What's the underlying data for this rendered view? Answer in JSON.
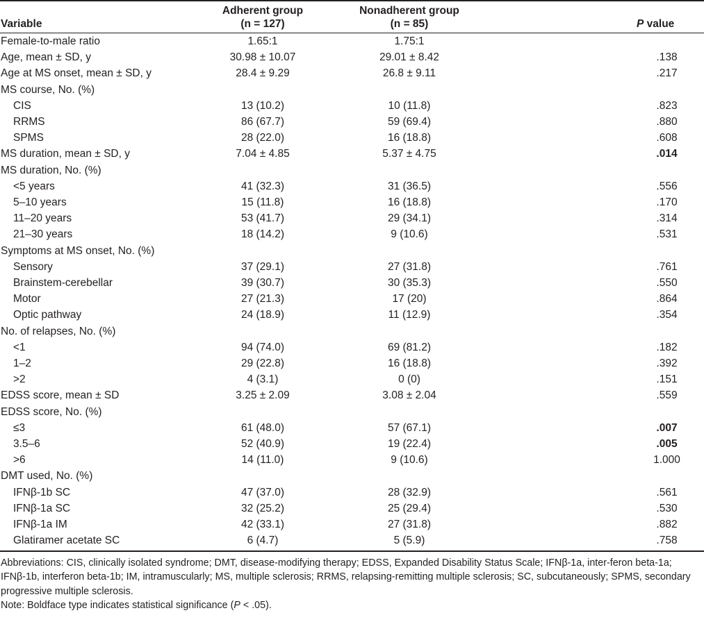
{
  "header": {
    "variable": "Variable",
    "adherent_line1": "Adherent group",
    "adherent_line2": "(n = 127)",
    "nonadherent_line1": "Nonadherent group",
    "nonadherent_line2": "(n = 85)",
    "p_italic": "P",
    "p_rest": " value"
  },
  "rows": [
    {
      "label": "Female-to-male ratio",
      "adherent": "1.65:1",
      "nonadherent": "1.75:1",
      "p": "",
      "sub": false,
      "sig": false
    },
    {
      "label": "Age, mean ± SD, y",
      "adherent": "30.98 ± 10.07",
      "nonadherent": "29.01 ± 8.42",
      "p": ".138",
      "sub": false,
      "sig": false
    },
    {
      "label": "Age at MS onset, mean ± SD, y",
      "adherent": "28.4 ± 9.29",
      "nonadherent": "26.8 ± 9.11",
      "p": ".217",
      "sub": false,
      "sig": false
    },
    {
      "label": "MS course, No. (%)",
      "adherent": "",
      "nonadherent": "",
      "p": "",
      "sub": false,
      "sig": false
    },
    {
      "label": "CIS",
      "adherent": "13 (10.2)",
      "nonadherent": "10 (11.8)",
      "p": ".823",
      "sub": true,
      "sig": false
    },
    {
      "label": "RRMS",
      "adherent": "86 (67.7)",
      "nonadherent": "59 (69.4)",
      "p": ".880",
      "sub": true,
      "sig": false
    },
    {
      "label": "SPMS",
      "adherent": "28 (22.0)",
      "nonadherent": "16 (18.8)",
      "p": ".608",
      "sub": true,
      "sig": false
    },
    {
      "label": "MS duration, mean ± SD, y",
      "adherent": "7.04 ± 4.85",
      "nonadherent": "5.37 ± 4.75",
      "p": ".014",
      "sub": false,
      "sig": true
    },
    {
      "label": "MS duration, No. (%)",
      "adherent": "",
      "nonadherent": "",
      "p": "",
      "sub": false,
      "sig": false
    },
    {
      "label": "<5 years",
      "adherent": "41 (32.3)",
      "nonadherent": "31 (36.5)",
      "p": ".556",
      "sub": true,
      "sig": false
    },
    {
      "label": "5–10 years",
      "adherent": "15 (11.8)",
      "nonadherent": "16 (18.8)",
      "p": ".170",
      "sub": true,
      "sig": false
    },
    {
      "label": "11–20 years",
      "adherent": "53 (41.7)",
      "nonadherent": "29 (34.1)",
      "p": ".314",
      "sub": true,
      "sig": false
    },
    {
      "label": "21–30 years",
      "adherent": "18 (14.2)",
      "nonadherent": "9 (10.6)",
      "p": ".531",
      "sub": true,
      "sig": false
    },
    {
      "label": "Symptoms at MS onset, No. (%)",
      "adherent": "",
      "nonadherent": "",
      "p": "",
      "sub": false,
      "sig": false
    },
    {
      "label": "Sensory",
      "adherent": "37 (29.1)",
      "nonadherent": "27 (31.8)",
      "p": ".761",
      "sub": true,
      "sig": false
    },
    {
      "label": "Brainstem-cerebellar",
      "adherent": "39 (30.7)",
      "nonadherent": "30 (35.3)",
      "p": ".550",
      "sub": true,
      "sig": false
    },
    {
      "label": "Motor",
      "adherent": "27 (21.3)",
      "nonadherent": "17 (20)",
      "p": ".864",
      "sub": true,
      "sig": false
    },
    {
      "label": "Optic pathway",
      "adherent": "24 (18.9)",
      "nonadherent": "11 (12.9)",
      "p": ".354",
      "sub": true,
      "sig": false
    },
    {
      "label": "No. of relapses, No. (%)",
      "adherent": "",
      "nonadherent": "",
      "p": "",
      "sub": false,
      "sig": false
    },
    {
      "label": "<1",
      "adherent": "94 (74.0)",
      "nonadherent": "69 (81.2)",
      "p": ".182",
      "sub": true,
      "sig": false
    },
    {
      "label": "1–2",
      "adherent": "29 (22.8)",
      "nonadherent": "16 (18.8)",
      "p": ".392",
      "sub": true,
      "sig": false
    },
    {
      "label": ">2",
      "adherent": "4 (3.1)",
      "nonadherent": "0 (0)",
      "p": ".151",
      "sub": true,
      "sig": false
    },
    {
      "label": "EDSS score, mean ± SD",
      "adherent": "3.25 ± 2.09",
      "nonadherent": "3.08 ± 2.04",
      "p": ".559",
      "sub": false,
      "sig": false
    },
    {
      "label": "EDSS score, No. (%)",
      "adherent": "",
      "nonadherent": "",
      "p": "",
      "sub": false,
      "sig": false
    },
    {
      "label": "≤3",
      "adherent": "61 (48.0)",
      "nonadherent": "57 (67.1)",
      "p": ".007",
      "sub": true,
      "sig": true
    },
    {
      "label": "3.5–6",
      "adherent": "52 (40.9)",
      "nonadherent": "19 (22.4)",
      "p": ".005",
      "sub": true,
      "sig": true
    },
    {
      "label": ">6",
      "adherent": "14 (11.0)",
      "nonadherent": "9 (10.6)",
      "p": "1.000",
      "sub": true,
      "sig": false
    },
    {
      "label": "DMT used, No. (%)",
      "adherent": "",
      "nonadherent": "",
      "p": "",
      "sub": false,
      "sig": false
    },
    {
      "label": "IFNβ-1b SC",
      "adherent": "47 (37.0)",
      "nonadherent": "28 (32.9)",
      "p": ".561",
      "sub": true,
      "sig": false
    },
    {
      "label": "IFNβ-1a SC",
      "adherent": "32 (25.2)",
      "nonadherent": "25 (29.4)",
      "p": ".530",
      "sub": true,
      "sig": false
    },
    {
      "label": "IFNβ-1a IM",
      "adherent": "42 (33.1)",
      "nonadherent": "27 (31.8)",
      "p": ".882",
      "sub": true,
      "sig": false
    },
    {
      "label": "Glatiramer acetate SC",
      "adherent": "6 (4.7)",
      "nonadherent": "5 (5.9)",
      "p": ".758",
      "sub": true,
      "sig": false
    }
  ],
  "footnotes": {
    "abbreviations": "Abbreviations: CIS, clinically isolated syndrome; DMT, disease-modifying therapy; EDSS, Expanded Disability Status Scale; IFNβ-1a, inter-feron beta-1a; IFNβ-1b, interferon beta-1b; IM, intramuscularly; MS, multiple sclerosis; RRMS, relapsing-remitting multiple sclerosis; SC, subcutaneously; SPMS, secondary progressive multiple sclerosis.",
    "note_before": "Note: Boldface type indicates statistical significance (",
    "note_italic": "P",
    "note_after": " < .05)."
  }
}
